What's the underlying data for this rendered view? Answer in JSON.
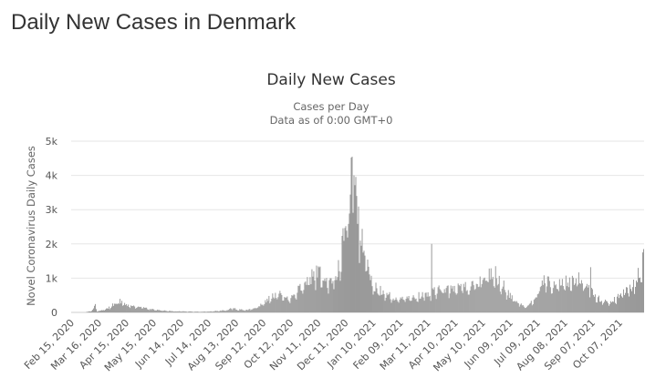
{
  "page": {
    "title": "Daily New Cases in Denmark"
  },
  "chart_data": {
    "type": "bar",
    "title": "Daily New Cases",
    "subtitle": "Cases per Day",
    "subtitle2": "Data as of 0:00 GMT+0",
    "ylabel": "Novel Coronavirus Daily Cases",
    "xlabel": "",
    "ylim": [
      0,
      5000
    ],
    "y_ticks": [
      0,
      1000,
      2000,
      3000,
      4000,
      5000
    ],
    "y_tick_labels": [
      "0",
      "1k",
      "2k",
      "3k",
      "4k",
      "5k"
    ],
    "grid": true,
    "legend": "none",
    "bar_color": "#999999",
    "x_start": "2020-02-15",
    "x_end": "2021-11-02",
    "x_tick_labels": [
      "Feb 15, 2020",
      "Mar 16, 2020",
      "Apr 15, 2020",
      "May 15, 2020",
      "Jun 14, 2020",
      "Jul 14, 2020",
      "Aug 13, 2020",
      "Sep 12, 2020",
      "Oct 12, 2020",
      "Nov 11, 2020",
      "Dec 11, 2020",
      "Jan 10, 2021",
      "Feb 09, 2021",
      "Mar 11, 2021",
      "Apr 10, 2021",
      "May 10, 2021",
      "Jun 09, 2021",
      "Jul 09, 2021",
      "Aug 08, 2021",
      "Sep 07, 2021",
      "Oct 07, 2021"
    ],
    "x_tick_dates": [
      "2020-02-15",
      "2020-03-16",
      "2020-04-15",
      "2020-05-15",
      "2020-06-14",
      "2020-07-14",
      "2020-08-13",
      "2020-09-12",
      "2020-10-12",
      "2020-11-11",
      "2020-12-11",
      "2021-01-10",
      "2021-02-09",
      "2021-03-11",
      "2021-04-10",
      "2021-05-10",
      "2021-06-09",
      "2021-07-09",
      "2021-08-08",
      "2021-09-07",
      "2021-10-07"
    ],
    "series": [
      {
        "name": "",
        "points": [
          [
            "2020-02-15",
            0
          ],
          [
            "2020-03-01",
            0
          ],
          [
            "2020-03-08",
            50
          ],
          [
            "2020-03-12",
            200
          ],
          [
            "2020-03-14",
            40
          ],
          [
            "2020-03-25",
            100
          ],
          [
            "2020-04-03",
            280
          ],
          [
            "2020-04-08",
            330
          ],
          [
            "2020-04-15",
            200
          ],
          [
            "2020-05-01",
            150
          ],
          [
            "2020-05-15",
            80
          ],
          [
            "2020-06-01",
            40
          ],
          [
            "2020-06-14",
            30
          ],
          [
            "2020-07-01",
            20
          ],
          [
            "2020-07-14",
            25
          ],
          [
            "2020-08-01",
            60
          ],
          [
            "2020-08-10",
            130
          ],
          [
            "2020-08-13",
            90
          ],
          [
            "2020-08-25",
            70
          ],
          [
            "2020-09-05",
            150
          ],
          [
            "2020-09-12",
            300
          ],
          [
            "2020-09-20",
            450
          ],
          [
            "2020-09-28",
            550
          ],
          [
            "2020-10-12",
            400
          ],
          [
            "2020-10-22",
            700
          ],
          [
            "2020-11-01",
            1000
          ],
          [
            "2020-11-11",
            1200
          ],
          [
            "2020-11-25",
            900
          ],
          [
            "2020-12-05",
            1400
          ],
          [
            "2020-12-10",
            2500
          ],
          [
            "2020-12-15",
            3300
          ],
          [
            "2020-12-18",
            4100
          ],
          [
            "2020-12-21",
            3700
          ],
          [
            "2020-12-25",
            2700
          ],
          [
            "2020-12-30",
            2000
          ],
          [
            "2021-01-05",
            1200
          ],
          [
            "2021-01-10",
            800
          ],
          [
            "2021-01-20",
            600
          ],
          [
            "2021-02-01",
            450
          ],
          [
            "2021-02-09",
            400
          ],
          [
            "2021-02-20",
            450
          ],
          [
            "2021-03-01",
            500
          ],
          [
            "2021-03-11",
            550
          ],
          [
            "2021-03-20",
            650
          ],
          [
            "2021-04-01",
            650
          ],
          [
            "2021-04-10",
            700
          ],
          [
            "2021-04-20",
            750
          ],
          [
            "2021-05-01",
            800
          ],
          [
            "2021-05-10",
            1000
          ],
          [
            "2021-05-20",
            1100
          ],
          [
            "2021-06-01",
            800
          ],
          [
            "2021-06-09",
            500
          ],
          [
            "2021-06-18",
            300
          ],
          [
            "2021-06-25",
            150
          ],
          [
            "2021-07-03",
            300
          ],
          [
            "2021-07-09",
            600
          ],
          [
            "2021-07-16",
            1000
          ],
          [
            "2021-07-25",
            800
          ],
          [
            "2021-08-08",
            900
          ],
          [
            "2021-08-20",
            1000
          ],
          [
            "2021-08-28",
            900
          ],
          [
            "2021-09-07",
            600
          ],
          [
            "2021-09-15",
            400
          ],
          [
            "2021-09-25",
            300
          ],
          [
            "2021-10-07",
            500
          ],
          [
            "2021-10-15",
            650
          ],
          [
            "2021-10-22",
            800
          ],
          [
            "2021-10-28",
            1200
          ],
          [
            "2021-11-02",
            1600
          ]
        ],
        "spikes": [
          [
            "2020-12-17",
            4520
          ],
          [
            "2020-12-20",
            4000
          ],
          [
            "2020-12-23",
            3400
          ],
          [
            "2021-03-15",
            2000
          ],
          [
            "2021-05-24",
            1350
          ],
          [
            "2021-09-05",
            1320
          ],
          [
            "2021-11-02",
            1850
          ]
        ]
      }
    ]
  }
}
